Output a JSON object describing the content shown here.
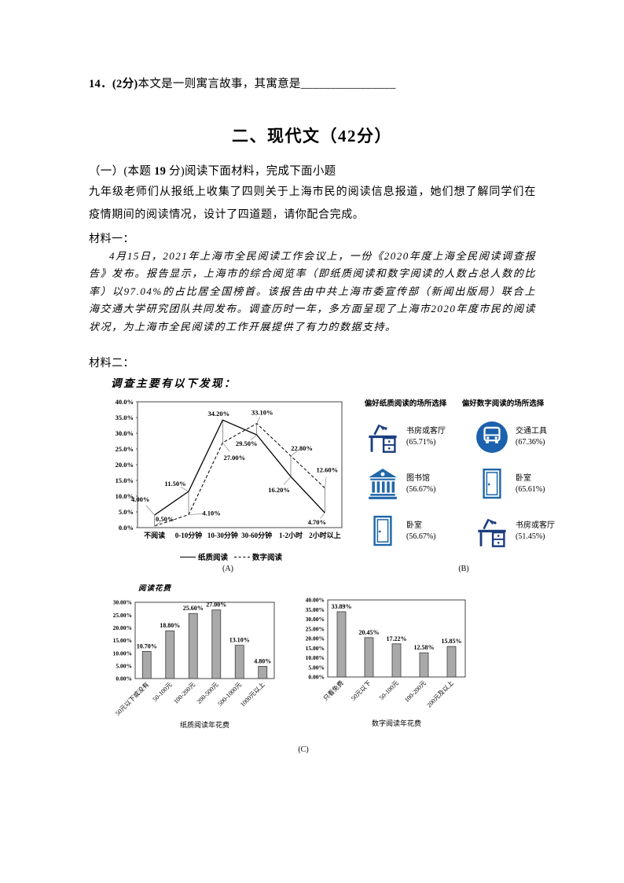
{
  "colors": {
    "icon_blue": "#2268a9",
    "icon_navy": "#1c3e7e",
    "bus_blue": "#1b61ae",
    "bar_fill": "#a9a9a9",
    "bar_stroke": "#3c3c3c",
    "line_color": "#000000"
  },
  "document": {
    "question14": {
      "prefix": "14．(2分)",
      "text": "本文是一则寓言故事，其寓意是",
      "blank": "________________"
    },
    "section_title": "二、现代文（42分）",
    "part_heading": {
      "pre": "（一）(本题 ",
      "num": "19",
      "post": " 分)阅读下面材料，完成下面小题"
    },
    "intro": "九年级老师们从报纸上收集了四则关于上海市民的阅读信息报道，她们想了解同学们在疫情期间的阅读情况，设计了四道题，请你配合完成。",
    "material1_label": "材料一：",
    "material1_text": "4月15日，2021年上海市全民阅读工作会议上，一份《2020年度上海全民阅读调查报告》发布。报告显示，上海市的综合阅览率（即纸质阅读和数字阅读的人数占总人数的比率）以97.04%的占比居全国榜首。该报告由中共上海市委宣传部（新闻出版局）联合上海交通大学研究团队共同发布。调查历时一年，多方面呈现了上海市2020年度市民的阅读状况，为上海市全民阅读的工作开展提供了有力的数据支持。",
    "material2_label": "材料二：",
    "findings_intro": "调查主要有以下发现："
  },
  "chart_data": [
    {
      "id": "reading-time-distribution",
      "type": "line",
      "label": "(A)",
      "categories": [
        "不阅读",
        "0-10分钟",
        "10-30分钟",
        "30-60分钟",
        "1-2小时",
        "2小时以上"
      ],
      "series": [
        {
          "name": "纸质阅读",
          "line_style": "solid",
          "values": [
            4.0,
            11.5,
            34.2,
            29.5,
            16.2,
            4.7
          ]
        },
        {
          "name": "数字阅读",
          "line_style": "dashed",
          "values": [
            0.5,
            4.1,
            27.0,
            33.1,
            22.8,
            12.6
          ]
        }
      ],
      "ylim": [
        0,
        40
      ],
      "ytick_step": 5,
      "ytick_format": "one-decimal-percent",
      "legend_position": "bottom",
      "grid": false
    },
    {
      "id": "place-preference",
      "type": "table",
      "label": "(B)",
      "columns": [
        {
          "header": "偏好纸质阅读的场所选择",
          "items": [
            {
              "icon": "desk-icon",
              "name": "书房或客厅",
              "value": "(65.71%)"
            },
            {
              "icon": "library-icon",
              "name": "图书馆",
              "value": "(56.67%)"
            },
            {
              "icon": "door-icon",
              "name": "卧室",
              "value": "(56.67%)"
            }
          ]
        },
        {
          "header": "偏好数字阅读的场所选择",
          "items": [
            {
              "icon": "bus-icon",
              "name": "交通工具",
              "value": "(67.36%)"
            },
            {
              "icon": "door-icon",
              "name": "卧室",
              "value": "(65.61%)"
            },
            {
              "icon": "desk-icon",
              "name": "书房或客厅",
              "value": "(51.45%)"
            }
          ]
        }
      ]
    },
    {
      "id": "paper-reading-cost",
      "type": "bar",
      "title": "阅读花费",
      "categories": [
        "50元以下或没有",
        "50-100元",
        "100-200元",
        "200-500元",
        "500-1000元",
        "1000元以上"
      ],
      "values": [
        10.7,
        18.8,
        25.6,
        27.0,
        13.1,
        4.8
      ],
      "xlabel": "纸质阅读年花费",
      "ylim": [
        0,
        30
      ],
      "ytick_step": 5,
      "ytick_format": "two-decimal-percent",
      "grid": false
    },
    {
      "id": "digital-reading-cost",
      "type": "bar",
      "label": "(C)",
      "categories": [
        "只看免费",
        "50元以下",
        "50-100元",
        "100-200元",
        "200元及以上"
      ],
      "values": [
        33.89,
        20.45,
        17.22,
        12.58,
        15.85
      ],
      "xlabel": "数字阅读年花费",
      "ylim": [
        0,
        40
      ],
      "ytick_step": 5,
      "ytick_format": "two-decimal-percent",
      "grid": false
    }
  ]
}
